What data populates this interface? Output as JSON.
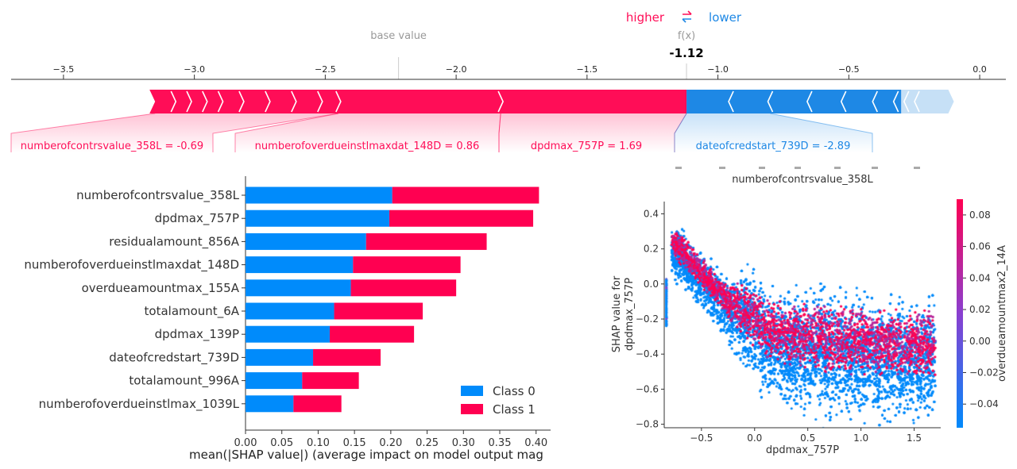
{
  "force_plot": {
    "higher_label": "higher",
    "lower_label": "lower",
    "base_value_label": "base value",
    "fx_label": "f(x)",
    "fx_value": "-1.12",
    "colors": {
      "higher": "#ff0d57",
      "lower": "#1e88e5",
      "light_lower": "#c6e0f6"
    }
  },
  "chart_data": [
    {
      "type": "force",
      "xlim": [
        -3.7,
        0.1
      ],
      "ticks": [
        -3.5,
        -3.0,
        -2.5,
        -2.0,
        -1.5,
        -1.0,
        -0.5,
        0.0
      ],
      "tick_labels": [
        "−3.5",
        "−3.0",
        "−2.5",
        "−2.0",
        "−1.5",
        "−1.0",
        "−0.5",
        "0.0"
      ],
      "base_value": -2.22,
      "output_value": -1.12,
      "positive_range": [
        -3.15,
        -1.12
      ],
      "negative_range": [
        -1.12,
        -0.12
      ],
      "positive_segment_breaks": [
        -3.08,
        -3.02,
        -2.96,
        -2.9,
        -2.82,
        -2.72,
        -2.62,
        -2.52,
        -2.45,
        -1.83
      ],
      "negative_segment_breaks": [
        -0.95,
        -0.8,
        -0.65,
        -0.52,
        -0.4,
        -0.32,
        -0.28,
        -0.24
      ],
      "features": [
        {
          "label": "numberofcontrsvalue_358L = -0.69",
          "side": "higher",
          "segment": [
            -3.15,
            -2.45
          ]
        },
        {
          "label": "numberofoverdueinstlmaxdat_148D = 0.86",
          "side": "higher",
          "segment": [
            -2.45,
            -1.83
          ]
        },
        {
          "label": "dpdmax_757P = 1.69",
          "side": "higher",
          "segment": [
            -1.83,
            -1.12
          ]
        },
        {
          "label": "dateofcredstart_739D = -2.89",
          "side": "lower",
          "segment": [
            -1.12,
            -0.8
          ]
        }
      ]
    },
    {
      "type": "bar",
      "orientation": "horizontal",
      "stacked": true,
      "categories": [
        "numberofcontrsvalue_358L",
        "dpdmax_757P",
        "residualamount_856A",
        "numberofoverdueinstlmaxdat_148D",
        "overdueamountmax_155A",
        "totalamount_6A",
        "dpdmax_139P",
        "dateofcredstart_739D",
        "totalamount_996A",
        "numberofoverdueinstlmax_1039L"
      ],
      "series": [
        {
          "name": "Class 0",
          "color": "#008bfb",
          "values": [
            0.202,
            0.198,
            0.166,
            0.148,
            0.145,
            0.122,
            0.116,
            0.093,
            0.078,
            0.066
          ]
        },
        {
          "name": "Class 1",
          "color": "#ff0051",
          "values": [
            0.202,
            0.198,
            0.166,
            0.148,
            0.145,
            0.122,
            0.116,
            0.093,
            0.078,
            0.066
          ]
        }
      ],
      "xlim": [
        0,
        0.42
      ],
      "xticks": [
        "0.00",
        "0.05",
        "0.10",
        "0.15",
        "0.20",
        "0.25",
        "0.30",
        "0.35",
        "0.40"
      ],
      "xlabel": "mean(|SHAP value|) (average impact on model output mag",
      "legend_position": "lower-right"
    },
    {
      "type": "scatter",
      "x_feature": "dpdmax_757P",
      "color_feature": "overdueamountmax2_14A",
      "xlabel": "dpdmax_757P",
      "ylabel_line1": "SHAP value for",
      "ylabel_line2": "dpdmax_757P",
      "xlim": [
        -0.85,
        1.75
      ],
      "ylim": [
        -0.82,
        0.47
      ],
      "xticks": [
        "−0.5",
        "0.0",
        "0.5",
        "1.0",
        "1.5"
      ],
      "xtick_values": [
        -0.5,
        0.0,
        0.5,
        1.0,
        1.5
      ],
      "yticks": [
        "−0.8",
        "−0.6",
        "−0.4",
        "−0.2",
        "0.0",
        "0.2",
        "0.4"
      ],
      "ytick_values": [
        -0.8,
        -0.6,
        -0.4,
        -0.2,
        0.0,
        0.2,
        0.4
      ],
      "colorbar_range": [
        -0.055,
        0.09
      ],
      "colorbar_ticks": [
        "−0.04",
        "−0.02",
        "0.00",
        "0.02",
        "0.04",
        "0.06",
        "0.08"
      ],
      "colorbar_tick_values": [
        -0.04,
        -0.02,
        0.0,
        0.02,
        0.04,
        0.06,
        0.08
      ],
      "colorbar_colors": [
        "#008afb",
        "#ff0052"
      ],
      "trend_x": [
        -0.8,
        -0.7,
        -0.55,
        -0.4,
        -0.25,
        -0.1,
        0.1,
        0.4,
        0.7,
        1.0,
        1.3,
        1.7
      ],
      "trend_y_center": [
        0.2,
        0.15,
        0.05,
        -0.05,
        -0.15,
        -0.2,
        -0.3,
        -0.34,
        -0.36,
        -0.38,
        -0.39,
        -0.4
      ],
      "trend_y_spread": [
        0.08,
        0.1,
        0.1,
        0.1,
        0.12,
        0.18,
        0.2,
        0.22,
        0.22,
        0.22,
        0.22,
        0.22
      ],
      "top_axis_label": "numberofcontrsvalue_358L"
    }
  ]
}
